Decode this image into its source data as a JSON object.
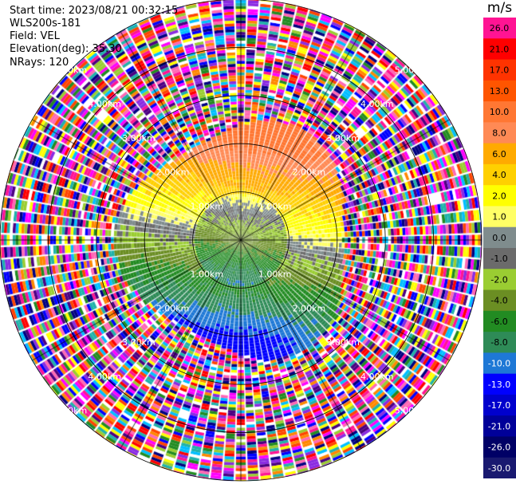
{
  "info": {
    "start_time": "Start time: 2023/08/21 00:32:15",
    "site": "WLS200s-181",
    "field": "Field: VEL",
    "elevation": "Elevation(deg): 35.30",
    "nrays": "NRays: 120"
  },
  "colorbar": {
    "unit": "m/s",
    "levels": [
      {
        "label": "26.0",
        "color": "#ff1493",
        "text": "#000000"
      },
      {
        "label": "21.0",
        "color": "#ff0000",
        "text": "#000000"
      },
      {
        "label": "17.0",
        "color": "#ff3300",
        "text": "#000000"
      },
      {
        "label": "13.0",
        "color": "#ff5500",
        "text": "#000000"
      },
      {
        "label": "10.0",
        "color": "#ff7733",
        "text": "#000000"
      },
      {
        "label": "8.0",
        "color": "#ff8a55",
        "text": "#000000"
      },
      {
        "label": "6.0",
        "color": "#ffaa00",
        "text": "#000000"
      },
      {
        "label": "4.0",
        "color": "#ffd000",
        "text": "#000000"
      },
      {
        "label": "2.0",
        "color": "#ffff00",
        "text": "#000000"
      },
      {
        "label": "1.0",
        "color": "#ffff66",
        "text": "#000000"
      },
      {
        "label": "0.0",
        "color": "#7f8c8d",
        "text": "#000000"
      },
      {
        "label": "-1.0",
        "color": "#6b6b6b",
        "text": "#000000"
      },
      {
        "label": "-2.0",
        "color": "#9acd32",
        "text": "#000000"
      },
      {
        "label": "-4.0",
        "color": "#6b8e23",
        "text": "#000000"
      },
      {
        "label": "-6.0",
        "color": "#228b22",
        "text": "#000000"
      },
      {
        "label": "-8.0",
        "color": "#2e8b57",
        "text": "#000000"
      },
      {
        "label": "-10.0",
        "color": "#1e78d6",
        "text": "#ffffff"
      },
      {
        "label": "-13.0",
        "color": "#0000ff",
        "text": "#ffffff"
      },
      {
        "label": "-17.0",
        "color": "#0000cd",
        "text": "#ffffff"
      },
      {
        "label": "-21.0",
        "color": "#000099",
        "text": "#ffffff"
      },
      {
        "label": "-26.0",
        "color": "#000066",
        "text": "#ffffff"
      },
      {
        "label": "-30.0",
        "color": "#191970",
        "text": "#ffffff"
      }
    ]
  },
  "range_rings": [
    {
      "range_km": 1,
      "label": "1.00km"
    },
    {
      "range_km": 2,
      "label": "2.00km"
    },
    {
      "range_km": 3,
      "label": "3.00km"
    },
    {
      "range_km": 4,
      "label": "4.00km"
    },
    {
      "range_km": 5,
      "label": "5.00km"
    }
  ],
  "noise_palette": [
    "#ff1493",
    "#ff00ff",
    "#0000ff",
    "#00bfff",
    "#ffff00",
    "#ff0000",
    "#ff8800",
    "#228b22",
    "#000080",
    "#9acd32",
    "#ff69b4",
    "#8a2be2",
    "#ffffff",
    "#4b0082",
    "#ff4500",
    "#20b2aa"
  ],
  "velocity_pattern": {
    "note_free": true
  }
}
